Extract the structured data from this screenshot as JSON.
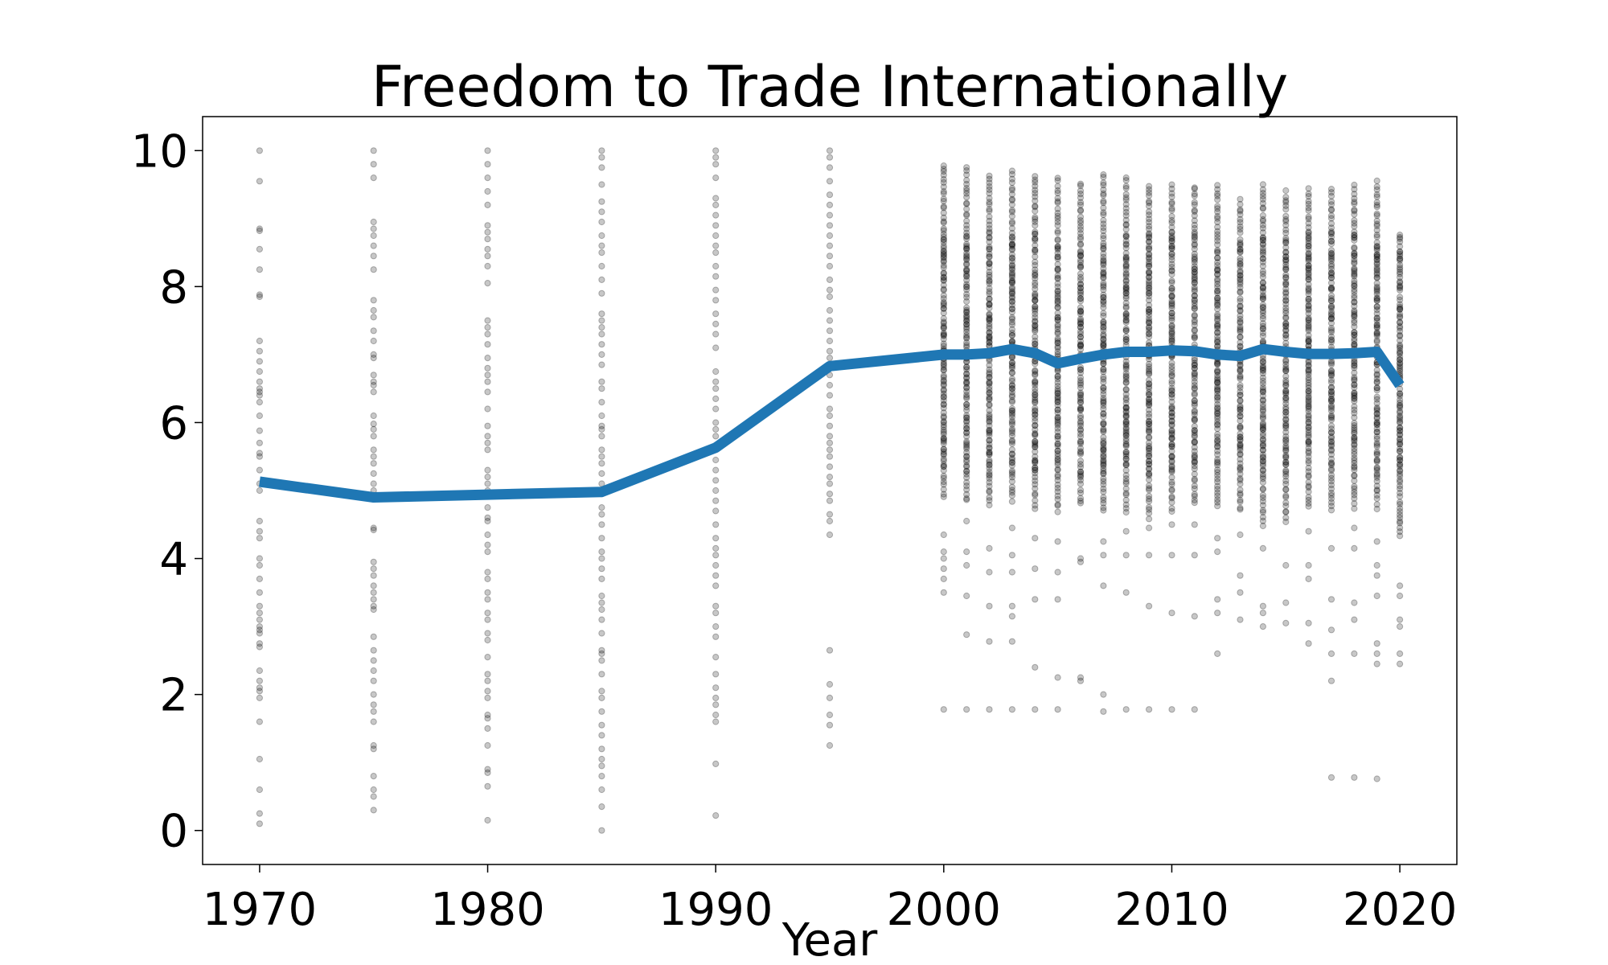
{
  "chart_data": {
    "type": "line",
    "title": "Freedom to Trade Internationally",
    "xlabel": "Year",
    "ylabel": "",
    "xlim": [
      1967.5,
      2022.5
    ],
    "ylim": [
      -0.5,
      10.5
    ],
    "xticks": [
      1970,
      1980,
      1990,
      2000,
      2010,
      2020
    ],
    "yticks": [
      0,
      2,
      4,
      6,
      8,
      10
    ],
    "grid": false,
    "legend": "none",
    "colors": {
      "line": "#1f77b4",
      "points": "#000000"
    },
    "series": [
      {
        "type": "line",
        "x": [
          1970,
          1975,
          1980,
          1985,
          1990,
          1995,
          2000,
          2001,
          2002,
          2003,
          2004,
          2005,
          2006,
          2007,
          2008,
          2009,
          2010,
          2011,
          2012,
          2013,
          2014,
          2015,
          2016,
          2017,
          2018,
          2019,
          2020
        ],
        "y": [
          5.13,
          4.9,
          4.94,
          4.98,
          5.63,
          6.83,
          7.0,
          7.0,
          7.02,
          7.08,
          7.02,
          6.87,
          6.94,
          7.0,
          7.04,
          7.04,
          7.06,
          7.05,
          7.0,
          6.98,
          7.08,
          7.04,
          7.01,
          7.01,
          7.02,
          7.04,
          6.55
        ]
      },
      {
        "type": "scatter",
        "points_by_year": {
          "1970": [
            10.0,
            9.55,
            8.85,
            8.82,
            8.55,
            8.25,
            7.88,
            7.85,
            7.2,
            7.05,
            6.9,
            6.75,
            6.6,
            6.5,
            6.45,
            6.4,
            6.3,
            6.1,
            5.88,
            5.7,
            5.55,
            5.5,
            5.3,
            5.1,
            5.0,
            4.55,
            4.4,
            4.3,
            4.0,
            3.9,
            3.7,
            3.5,
            3.3,
            3.2,
            3.1,
            3.0,
            2.95,
            2.9,
            2.75,
            2.7,
            2.35,
            2.2,
            2.1,
            2.05,
            1.95,
            1.6,
            1.05,
            0.6,
            0.25,
            0.1
          ],
          "1975": [
            10.0,
            9.8,
            9.6,
            8.95,
            8.85,
            8.75,
            8.6,
            8.45,
            8.25,
            7.8,
            7.65,
            7.55,
            7.35,
            7.2,
            7.0,
            6.95,
            6.7,
            6.6,
            6.55,
            6.45,
            6.1,
            5.98,
            5.9,
            5.8,
            5.6,
            5.5,
            5.4,
            5.25,
            5.1,
            5.0,
            4.45,
            4.42,
            3.95,
            3.85,
            3.75,
            3.6,
            3.5,
            3.4,
            3.3,
            3.25,
            2.85,
            2.65,
            2.5,
            2.35,
            2.2,
            2.0,
            1.85,
            1.75,
            1.6,
            1.25,
            1.2,
            0.8,
            0.6,
            0.5,
            0.3
          ],
          "1980": [
            10.0,
            9.8,
            9.6,
            9.4,
            9.2,
            8.9,
            8.8,
            8.7,
            8.55,
            8.45,
            8.3,
            8.05,
            7.5,
            7.4,
            7.3,
            7.15,
            6.95,
            6.8,
            6.7,
            6.6,
            6.45,
            6.2,
            5.95,
            5.8,
            5.7,
            5.6,
            5.3,
            5.2,
            5.1,
            5.0,
            4.75,
            4.6,
            4.55,
            4.35,
            4.2,
            4.1,
            3.8,
            3.7,
            3.5,
            3.4,
            3.2,
            3.1,
            2.9,
            2.8,
            2.55,
            2.3,
            2.2,
            2.05,
            1.95,
            1.7,
            1.65,
            1.5,
            1.25,
            0.9,
            0.85,
            0.65,
            0.15
          ],
          "1985": [
            10.0,
            9.9,
            9.75,
            9.5,
            9.25,
            9.1,
            8.95,
            8.75,
            8.6,
            8.5,
            8.3,
            8.1,
            7.9,
            7.6,
            7.5,
            7.4,
            7.3,
            7.15,
            7.0,
            6.85,
            6.6,
            6.5,
            6.3,
            6.1,
            5.95,
            5.9,
            5.8,
            5.6,
            5.5,
            5.4,
            5.25,
            5.1,
            4.95,
            4.75,
            4.65,
            4.5,
            4.3,
            4.1,
            4.0,
            3.85,
            3.7,
            3.45,
            3.35,
            3.25,
            3.1,
            2.9,
            2.65,
            2.6,
            2.5,
            2.3,
            2.05,
            1.95,
            1.75,
            1.55,
            1.4,
            1.2,
            1.05,
            0.95,
            0.8,
            0.6,
            0.35,
            0.0
          ],
          "1990": [
            10.0,
            9.9,
            9.8,
            9.6,
            9.3,
            9.2,
            9.05,
            8.9,
            8.75,
            8.6,
            8.5,
            8.3,
            8.15,
            7.95,
            7.8,
            7.6,
            7.45,
            7.3,
            7.1,
            6.75,
            6.6,
            6.5,
            6.35,
            6.2,
            6.0,
            5.9,
            5.8,
            5.6,
            5.45,
            5.3,
            5.15,
            5.0,
            4.85,
            4.7,
            4.5,
            4.3,
            4.15,
            4.05,
            3.9,
            3.75,
            3.6,
            3.3,
            3.2,
            3.0,
            2.85,
            2.55,
            2.3,
            2.1,
            1.95,
            1.85,
            1.7,
            1.6,
            0.98,
            0.22
          ],
          "1995": [
            10.0,
            9.9,
            9.75,
            9.55,
            9.35,
            9.2,
            9.05,
            8.9,
            8.75,
            8.6,
            8.45,
            8.3,
            8.1,
            7.95,
            7.85,
            7.65,
            7.5,
            7.35,
            7.2,
            7.05,
            6.95,
            6.85,
            6.7,
            6.55,
            6.4,
            6.2,
            6.1,
            5.95,
            5.8,
            5.7,
            5.6,
            5.5,
            5.35,
            5.2,
            5.1,
            4.95,
            4.85,
            4.65,
            4.55,
            4.35,
            2.65,
            2.15,
            1.95,
            1.7,
            1.55,
            1.25
          ]
        },
        "dense_years": {
          "2000": {
            "main_range": [
              4.9,
              9.8
            ],
            "outliers": [
              4.35,
              4.1,
              4.0,
              3.85,
              3.7,
              3.5,
              1.78
            ]
          },
          "2001": {
            "main_range": [
              4.85,
              9.75
            ],
            "outliers": [
              4.55,
              4.1,
              3.9,
              3.45,
              2.88,
              1.78
            ]
          },
          "2002": {
            "main_range": [
              4.8,
              9.65
            ],
            "outliers": [
              4.15,
              3.8,
              3.3,
              2.78,
              1.78
            ]
          },
          "2003": {
            "main_range": [
              4.85,
              9.7
            ],
            "outliers": [
              4.45,
              4.05,
              3.8,
              3.3,
              3.15,
              2.78,
              1.78
            ]
          },
          "2004": {
            "main_range": [
              4.75,
              9.65
            ],
            "outliers": [
              4.3,
              3.85,
              3.4,
              2.4,
              1.78
            ]
          },
          "2005": {
            "main_range": [
              4.7,
              9.6
            ],
            "outliers": [
              4.25,
              3.8,
              3.4,
              2.25,
              1.78
            ]
          },
          "2006": {
            "main_range": [
              4.8,
              9.55
            ],
            "outliers": [
              4.0,
              3.95,
              2.25,
              2.2
            ]
          },
          "2007": {
            "main_range": [
              4.7,
              9.65
            ],
            "outliers": [
              4.25,
              4.05,
              3.6,
              2.0,
              1.75
            ]
          },
          "2008": {
            "main_range": [
              4.7,
              9.6
            ],
            "outliers": [
              4.4,
              4.05,
              3.5,
              1.78
            ]
          },
          "2009": {
            "main_range": [
              4.6,
              9.5
            ],
            "outliers": [
              4.45,
              4.05,
              3.3,
              1.78
            ]
          },
          "2010": {
            "main_range": [
              4.7,
              9.5
            ],
            "outliers": [
              4.5,
              4.05,
              3.2,
              1.78
            ]
          },
          "2011": {
            "main_range": [
              4.8,
              9.5
            ],
            "outliers": [
              4.5,
              4.05,
              3.15,
              1.78
            ]
          },
          "2012": {
            "main_range": [
              4.75,
              9.5
            ],
            "outliers": [
              4.3,
              4.1,
              3.4,
              3.2,
              2.6
            ]
          },
          "2013": {
            "main_range": [
              4.7,
              9.3
            ],
            "outliers": [
              4.35,
              3.75,
              3.5,
              3.1
            ]
          },
          "2014": {
            "main_range": [
              4.5,
              9.55
            ],
            "outliers": [
              4.15,
              3.3,
              3.2,
              3.0
            ]
          },
          "2015": {
            "main_range": [
              4.55,
              9.4
            ],
            "outliers": [
              3.9,
              3.35,
              3.05
            ]
          },
          "2016": {
            "main_range": [
              4.75,
              9.45
            ],
            "outliers": [
              4.4,
              3.9,
              3.7,
              3.05,
              2.75
            ]
          },
          "2017": {
            "main_range": [
              4.7,
              9.45
            ],
            "outliers": [
              4.15,
              3.4,
              2.95,
              2.6,
              2.2,
              0.78
            ]
          },
          "2018": {
            "main_range": [
              4.75,
              9.5
            ],
            "outliers": [
              4.45,
              4.15,
              3.35,
              3.1,
              2.6,
              0.78
            ]
          },
          "2019": {
            "main_range": [
              4.75,
              9.55
            ],
            "outliers": [
              4.25,
              3.9,
              3.75,
              3.45,
              2.75,
              2.6,
              2.45,
              0.76
            ]
          },
          "2020": {
            "main_range": [
              4.35,
              8.75
            ],
            "outliers": [
              4.6,
              3.6,
              3.45,
              3.1,
              3.0,
              2.6,
              2.45
            ]
          }
        }
      }
    ]
  }
}
